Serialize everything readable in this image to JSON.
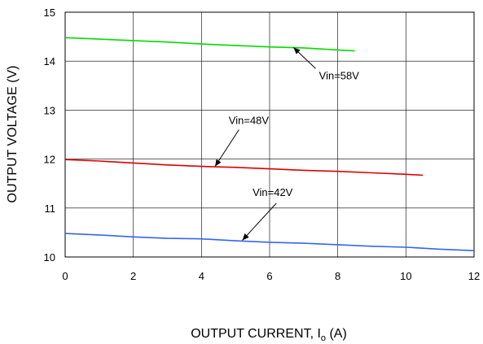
{
  "chart_data": {
    "type": "line",
    "xlabel_main": "OUTPUT CURRENT, I",
    "xlabel_sub": "o",
    "xlabel_unit": " (A)",
    "ylabel": "OUTPUT VOLTAGE (V)",
    "xlim": [
      0,
      12
    ],
    "ylim": [
      10,
      15
    ],
    "xticks": [
      "0",
      "2",
      "4",
      "6",
      "8",
      "10",
      "12"
    ],
    "yticks": [
      "10",
      "11",
      "12",
      "13",
      "14",
      "15"
    ],
    "grid": true,
    "series": [
      {
        "name": "Vin=58V",
        "color": "#00dd00",
        "x": [
          0,
          1,
          2,
          3,
          4,
          5,
          6,
          7,
          8,
          8.5
        ],
        "y": [
          14.48,
          14.45,
          14.42,
          14.39,
          14.35,
          14.32,
          14.29,
          14.27,
          14.23,
          14.21
        ]
      },
      {
        "name": "Vin=48V",
        "color": "#dd0000",
        "x": [
          0,
          1,
          2,
          3,
          4,
          5,
          6,
          7,
          8,
          9,
          10,
          10.5
        ],
        "y": [
          11.99,
          11.96,
          11.92,
          11.88,
          11.85,
          11.83,
          11.8,
          11.77,
          11.75,
          11.72,
          11.69,
          11.67
        ]
      },
      {
        "name": "Vin=42V",
        "color": "#3366ee",
        "x": [
          0,
          1,
          2,
          3,
          4,
          5,
          6,
          7,
          8,
          9,
          10,
          11,
          12
        ],
        "y": [
          10.48,
          10.45,
          10.41,
          10.38,
          10.37,
          10.33,
          10.3,
          10.28,
          10.25,
          10.22,
          10.2,
          10.16,
          10.13
        ]
      }
    ],
    "annotations": [
      {
        "text": "Vin=58V",
        "label_x": 7.45,
        "label_y": 13.63,
        "arrow_from": [
          7.35,
          13.85
        ],
        "arrow_to": [
          6.7,
          14.28
        ]
      },
      {
        "text": "Vin=48V",
        "label_x": 4.8,
        "label_y": 12.72,
        "arrow_from": [
          5.1,
          12.6
        ],
        "arrow_to": [
          4.4,
          11.85
        ]
      },
      {
        "text": "Vin=42V",
        "label_x": 5.5,
        "label_y": 11.25,
        "arrow_from": [
          6.2,
          11.1
        ],
        "arrow_to": [
          5.2,
          10.34
        ]
      }
    ]
  }
}
